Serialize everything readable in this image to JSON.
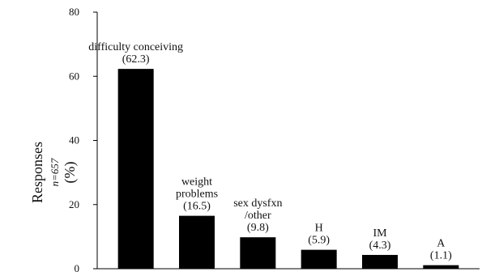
{
  "chart_data": {
    "type": "bar",
    "categories": [
      "difficulty conceiving",
      "weight problems",
      "sex dysfxn /other",
      "H",
      "IM",
      "A"
    ],
    "category_label_lines": [
      [
        "difficulty conceiving"
      ],
      [
        "weight",
        "problems"
      ],
      [
        "sex dysfxn",
        "/other"
      ],
      [
        "H"
      ],
      [
        "IM"
      ],
      [
        "A"
      ]
    ],
    "values": [
      62.3,
      16.5,
      9.8,
      5.9,
      4.3,
      1.1
    ],
    "value_labels": [
      "(62.3)",
      "(16.5)",
      "(9.8)",
      "(5.9)",
      "(4.3)",
      "(1.1)"
    ],
    "ylabel": "Responses",
    "ylabel_n": "n=657",
    "ylabel_unit": "(%)",
    "ylim": [
      0,
      80
    ],
    "yticks": [
      0,
      20,
      40,
      60,
      80
    ],
    "grid": false,
    "bar_color": "#000000"
  }
}
